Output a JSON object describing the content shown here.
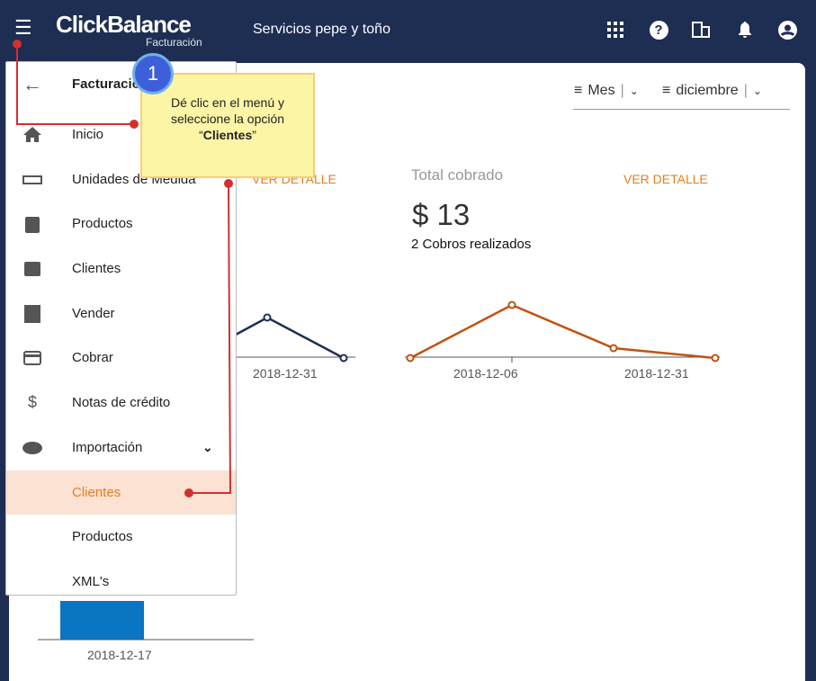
{
  "header": {
    "logo": "ClickBalance",
    "logo_sub": "Facturación",
    "company": "Servicios pepe y toño",
    "icons": [
      "apps-icon",
      "help-icon",
      "building-icon",
      "bell-icon",
      "account-icon"
    ]
  },
  "filters": {
    "period": "Mes",
    "month": "diciembre"
  },
  "cards": {
    "ver_detalle_1": "VER DETALLE",
    "total_title": "Total cobrado",
    "total_value": "$ 13",
    "total_sub": "2 Cobros realizados",
    "ver_detalle_2": "VER DETALLE"
  },
  "chart_data": [
    {
      "type": "line",
      "color": "#1e2d52",
      "x": [
        "2018-12-31"
      ],
      "tick_labels": [
        "2018-12-31"
      ],
      "note_partial": true
    },
    {
      "type": "line",
      "color": "#c0520f",
      "x": [
        "start",
        "2018-12-06",
        "2018-12-20",
        "2018-12-31"
      ],
      "tick_labels": [
        "2018-12-06",
        "2018-12-31"
      ],
      "values": [
        0,
        10,
        2,
        0
      ]
    },
    {
      "type": "bar",
      "color": "#0a75c2",
      "tick_labels": [
        "2018-12-17"
      ]
    }
  ],
  "drawer": {
    "title": "Facturación",
    "items": [
      {
        "label": "Inicio",
        "icon": "home-icon"
      },
      {
        "label": "Unidades de Medida",
        "icon": "ruler-icon"
      },
      {
        "label": "Productos",
        "icon": "clipboard-icon"
      },
      {
        "label": "Clientes",
        "icon": "contacts-icon"
      },
      {
        "label": "Vender",
        "icon": "receipt-icon"
      },
      {
        "label": "Cobrar",
        "icon": "credit-card-icon"
      },
      {
        "label": "Notas de crédito",
        "icon": "money-off-icon"
      },
      {
        "label": "Importación",
        "icon": "cloud-upload-icon"
      },
      {
        "label": "Clientes",
        "icon": ""
      },
      {
        "label": "Productos",
        "icon": ""
      },
      {
        "label": "XML's",
        "icon": ""
      }
    ]
  },
  "tooltip": {
    "step": "1",
    "line1": "Dé clic en el menú y",
    "line2": "seleccione la opción",
    "bold": "Clientes"
  },
  "colors": {
    "header": "#1e2d52",
    "accent": "#e67e22",
    "active_bg": "#fbe2d3"
  }
}
